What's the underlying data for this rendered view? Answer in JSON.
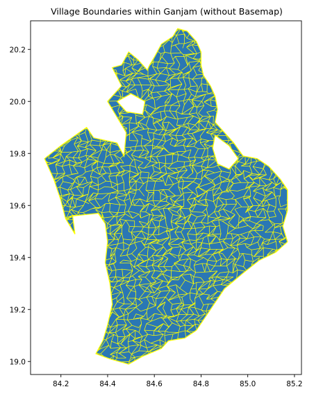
{
  "figure": {
    "title": "Village Boundaries within Ganjam (without Basemap)"
  },
  "colors": {
    "fill": "#2a77b4",
    "boundary": "#ffff00",
    "frame": "#000000",
    "background": "#ffffff"
  },
  "chart_data": {
    "type": "choropleth-boundary-map",
    "title": "Village Boundaries within Ganjam (without Basemap)",
    "xlabel": "",
    "ylabel": "",
    "xlim": [
      84.07,
      85.23
    ],
    "ylim": [
      18.95,
      20.31
    ],
    "x_ticks": [
      84.2,
      84.4,
      84.6,
      84.8,
      85.0,
      85.2
    ],
    "x_tick_labels": [
      "84.2",
      "84.4",
      "84.6",
      "84.8",
      "85.0",
      "85.2"
    ],
    "y_ticks": [
      19.0,
      19.2,
      19.4,
      19.6,
      19.8,
      20.0,
      20.2
    ],
    "y_tick_labels": [
      "19.0",
      "19.2",
      "19.4",
      "19.6",
      "19.8",
      "20.0",
      "20.2"
    ],
    "grid": false,
    "legend": "none",
    "fill_color": "#2a77b4",
    "boundary_color": "#ffff00",
    "outline": [
      [
        84.13,
        19.78
      ],
      [
        84.2,
        19.83
      ],
      [
        84.31,
        19.9
      ],
      [
        84.34,
        19.86
      ],
      [
        84.44,
        19.84
      ],
      [
        84.47,
        19.79
      ],
      [
        84.48,
        19.88
      ],
      [
        84.4,
        20.0
      ],
      [
        84.42,
        20.02
      ],
      [
        84.46,
        20.06
      ],
      [
        84.42,
        20.13
      ],
      [
        84.46,
        20.14
      ],
      [
        84.49,
        20.19
      ],
      [
        84.53,
        20.16
      ],
      [
        84.57,
        20.12
      ],
      [
        84.58,
        20.14
      ],
      [
        84.6,
        20.17
      ],
      [
        84.63,
        20.22
      ],
      [
        84.68,
        20.25
      ],
      [
        84.7,
        20.28
      ],
      [
        84.74,
        20.27
      ],
      [
        84.78,
        20.23
      ],
      [
        84.8,
        20.19
      ],
      [
        84.8,
        20.14
      ],
      [
        84.81,
        20.1
      ],
      [
        84.84,
        20.06
      ],
      [
        84.86,
        20.02
      ],
      [
        84.87,
        19.97
      ],
      [
        84.86,
        19.92
      ],
      [
        84.9,
        19.88
      ],
      [
        84.94,
        19.84
      ],
      [
        84.98,
        19.79
      ],
      [
        85.04,
        19.78
      ],
      [
        85.09,
        19.75
      ],
      [
        85.14,
        19.7
      ],
      [
        85.17,
        19.66
      ],
      [
        85.17,
        19.58
      ],
      [
        85.15,
        19.52
      ],
      [
        85.17,
        19.46
      ],
      [
        85.12,
        19.42
      ],
      [
        85.05,
        19.39
      ],
      [
        84.98,
        19.34
      ],
      [
        84.9,
        19.28
      ],
      [
        84.84,
        19.2
      ],
      [
        84.78,
        19.12
      ],
      [
        84.73,
        19.09
      ],
      [
        84.66,
        19.08
      ],
      [
        84.63,
        19.05
      ],
      [
        84.55,
        19.02
      ],
      [
        84.49,
        18.99
      ],
      [
        84.41,
        19.01
      ],
      [
        84.35,
        19.03
      ],
      [
        84.38,
        19.08
      ],
      [
        84.4,
        19.14
      ],
      [
        84.42,
        19.22
      ],
      [
        84.41,
        19.3
      ],
      [
        84.39,
        19.38
      ],
      [
        84.4,
        19.46
      ],
      [
        84.39,
        19.53
      ],
      [
        84.36,
        19.57
      ],
      [
        84.25,
        19.56
      ],
      [
        84.26,
        19.49
      ],
      [
        84.22,
        19.55
      ],
      [
        84.2,
        19.62
      ],
      [
        84.17,
        19.7
      ],
      [
        84.13,
        19.78
      ]
    ],
    "holes": [
      [
        [
          84.86,
          19.87
        ],
        [
          84.92,
          19.83
        ],
        [
          84.96,
          19.78
        ],
        [
          84.92,
          19.74
        ],
        [
          84.87,
          19.76
        ],
        [
          84.85,
          19.82
        ],
        [
          84.86,
          19.87
        ]
      ],
      [
        [
          84.44,
          20.0
        ],
        [
          84.5,
          20.03
        ],
        [
          84.56,
          20.0
        ],
        [
          84.55,
          19.95
        ],
        [
          84.48,
          19.96
        ],
        [
          84.44,
          20.0
        ]
      ]
    ],
    "village_mesh": {
      "seed": 24613,
      "grid_dx": 0.026,
      "grid_dy": 0.021,
      "jitter": 0.45
    }
  }
}
